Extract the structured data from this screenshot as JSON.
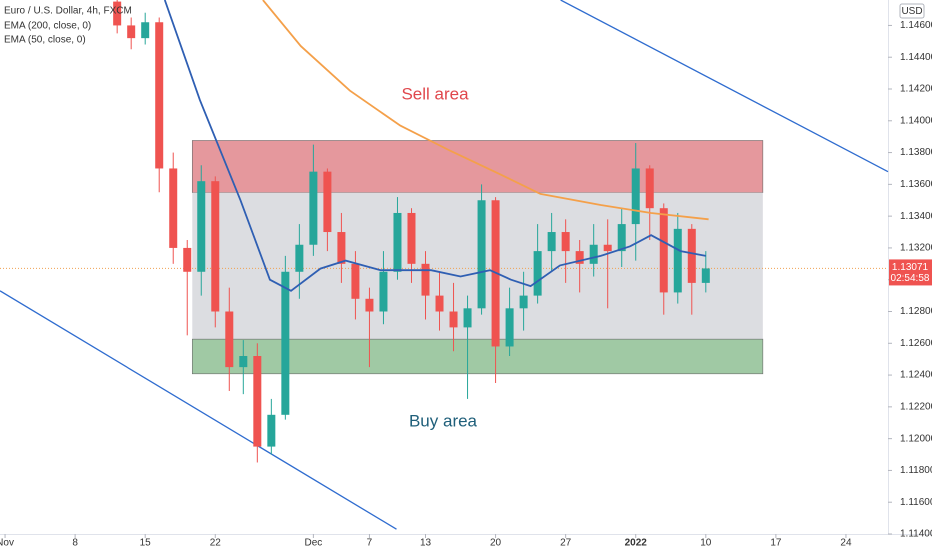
{
  "chart_data": {
    "type": "candlestick",
    "title": "Euro / U.S. Dollar, 4h, FXCM",
    "indicators": [
      "EMA (200, close, 0)",
      "EMA (50, close, 0)"
    ],
    "currency": "USD",
    "annotations": [
      "Sell area",
      "Buy area"
    ],
    "last_price": 1.13071,
    "countdown": "02:54:58",
    "xlim": [
      -0.36,
      63
    ],
    "ylim": [
      1.114,
      1.1476
    ],
    "xticks": [
      {
        "value": 0,
        "label": "Nov"
      },
      {
        "value": 5,
        "label": "8"
      },
      {
        "value": 10,
        "label": "15"
      },
      {
        "value": 15,
        "label": "22"
      },
      {
        "value": 22,
        "label": "Dec"
      },
      {
        "value": 26,
        "label": "7"
      },
      {
        "value": 30,
        "label": "13"
      },
      {
        "value": 35,
        "label": "20"
      },
      {
        "value": 40,
        "label": "27"
      },
      {
        "value": 45,
        "label": "2022"
      },
      {
        "value": 50,
        "label": "10"
      },
      {
        "value": 55,
        "label": "17"
      },
      {
        "value": 60,
        "label": "24"
      }
    ],
    "yticks": [
      {
        "value": 1.114,
        "label": "1.11400"
      },
      {
        "value": 1.116,
        "label": "1.11600"
      },
      {
        "value": 1.118,
        "label": "1.11800"
      },
      {
        "value": 1.12,
        "label": "1.12000"
      },
      {
        "value": 1.122,
        "label": "1.12200"
      },
      {
        "value": 1.124,
        "label": "1.12400"
      },
      {
        "value": 1.126,
        "label": "1.12600"
      },
      {
        "value": 1.128,
        "label": "1.12800"
      },
      {
        "value": 1.13,
        "label": "1.13000"
      },
      {
        "value": 1.132,
        "label": "1.13200"
      },
      {
        "value": 1.134,
        "label": "1.13400"
      },
      {
        "value": 1.136,
        "label": "1.13600"
      },
      {
        "value": 1.138,
        "label": "1.13800"
      },
      {
        "value": 1.14,
        "label": "1.14000"
      },
      {
        "value": 1.142,
        "label": "1.14200"
      },
      {
        "value": 1.144,
        "label": "1.14400"
      },
      {
        "value": 1.146,
        "label": "1.14600"
      }
    ],
    "up_color": "#26a69a",
    "down_color": "#ef5350",
    "x": [
      8,
      9,
      10,
      11,
      12,
      13,
      14,
      15,
      16,
      17,
      18,
      19,
      20,
      21,
      22,
      23,
      24,
      25,
      26,
      27,
      28,
      29,
      30,
      31,
      32,
      33,
      34,
      35,
      36,
      37,
      38,
      39,
      40,
      41,
      42,
      43,
      44,
      45,
      46,
      47,
      48,
      49,
      50
    ],
    "open": [
      1.1475,
      1.146,
      1.1452,
      1.1462,
      1.137,
      1.132,
      1.1305,
      1.1362,
      1.128,
      1.1245,
      1.1252,
      1.1195,
      1.1215,
      1.1305,
      1.1322,
      1.1368,
      1.133,
      1.131,
      1.1288,
      1.128,
      1.1305,
      1.1342,
      1.131,
      1.129,
      1.128,
      1.127,
      1.1282,
      1.135,
      1.1258,
      1.1282,
      1.129,
      1.1318,
      1.133,
      1.1318,
      1.131,
      1.1322,
      1.1318,
      1.1335,
      1.137,
      1.1345,
      1.1292,
      1.1332,
      1.1298
    ],
    "high": [
      1.1476,
      1.1465,
      1.1468,
      1.1465,
      1.138,
      1.1325,
      1.1372,
      1.1365,
      1.1295,
      1.1262,
      1.126,
      1.1225,
      1.1315,
      1.1335,
      1.1385,
      1.137,
      1.1342,
      1.1318,
      1.1295,
      1.1318,
      1.1352,
      1.1345,
      1.1318,
      1.1305,
      1.1298,
      1.129,
      1.136,
      1.1352,
      1.1295,
      1.1305,
      1.1335,
      1.1342,
      1.1338,
      1.1325,
      1.1335,
      1.1338,
      1.1345,
      1.1386,
      1.1372,
      1.1348,
      1.1342,
      1.1335,
      1.1318
    ],
    "low": [
      1.1455,
      1.1445,
      1.1448,
      1.1355,
      1.131,
      1.1265,
      1.129,
      1.127,
      1.123,
      1.1228,
      1.1185,
      1.119,
      1.1212,
      1.1288,
      1.1315,
      1.1318,
      1.1298,
      1.1275,
      1.1245,
      1.1272,
      1.13,
      1.1298,
      1.1275,
      1.1268,
      1.1255,
      1.1225,
      1.1278,
      1.1235,
      1.1252,
      1.1268,
      1.1285,
      1.1305,
      1.1298,
      1.1292,
      1.1302,
      1.1282,
      1.1308,
      1.1312,
      1.1325,
      1.1278,
      1.1285,
      1.1278,
      1.1292
    ],
    "close": [
      1.146,
      1.1452,
      1.1462,
      1.137,
      1.132,
      1.1305,
      1.1362,
      1.128,
      1.1245,
      1.1252,
      1.1195,
      1.1215,
      1.1305,
      1.1322,
      1.1368,
      1.133,
      1.131,
      1.1288,
      1.128,
      1.1305,
      1.1342,
      1.131,
      1.129,
      1.128,
      1.127,
      1.1282,
      1.135,
      1.1258,
      1.1282,
      1.129,
      1.1318,
      1.133,
      1.1318,
      1.131,
      1.1322,
      1.1318,
      1.1335,
      1.137,
      1.1345,
      1.1292,
      1.1332,
      1.1298,
      1.13071
    ],
    "series": [
      {
        "name": "EMA (200, close, 0)",
        "color": "#f4a04a",
        "x": [
          18.4,
          21.1,
          24.6,
          28.2,
          31.8,
          35.4,
          38.2,
          42.5,
          46.1,
          50.2
        ],
        "values": [
          1.1476,
          1.1447,
          1.1419,
          1.1397,
          1.1381,
          1.1366,
          1.1354,
          1.1347,
          1.1342,
          1.1338
        ]
      },
      {
        "name": "EMA (50, close, 0)",
        "color": "#2f5fb3",
        "x": [
          11.4,
          13.9,
          16.8,
          18.9,
          20.4,
          22.5,
          24.3,
          26.8,
          30.4,
          32.5,
          34.6,
          36.1,
          37.5,
          39.6,
          42.5,
          44.6,
          46.1,
          48.2,
          50
        ],
        "values": [
          1.1476,
          1.1413,
          1.135,
          1.13,
          1.1293,
          1.1307,
          1.1312,
          1.1306,
          1.1306,
          1.1302,
          1.1306,
          1.13,
          1.1296,
          1.1309,
          1.1315,
          1.1321,
          1.1328,
          1.1318,
          1.1315
        ]
      }
    ],
    "zones": [
      {
        "x": [
          13.36,
          54.07
        ],
        "y": [
          1.13548,
          1.13876
        ],
        "color": "#e0868c"
      },
      {
        "x": [
          13.36,
          54.07
        ],
        "y": [
          1.12626,
          1.13548
        ],
        "color": "#d6d7dc"
      },
      {
        "x": [
          13.36,
          54.07
        ],
        "y": [
          1.12408,
          1.12626
        ],
        "color": "#8fbf94"
      }
    ],
    "trend_lines": [
      {
        "x": [
          39.64,
          63
        ],
        "y": [
          1.1476,
          1.1368
        ],
        "color": "#2f6ccf"
      },
      {
        "x": [
          -0.36,
          27.93
        ],
        "y": [
          1.1293,
          1.1143
        ],
        "color": "#2f6ccf"
      }
    ]
  }
}
